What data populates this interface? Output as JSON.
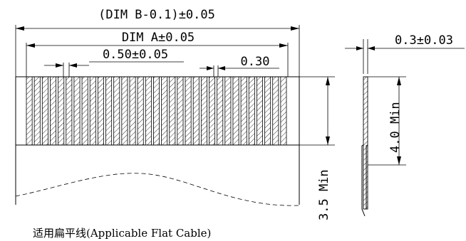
{
  "dims": {
    "dim_b": "(DIM B-0.1)±0.05",
    "dim_a": "DIM A±0.05",
    "pitch": "0.50±0.05",
    "width": "0.30",
    "thickness": "0.3±0.03",
    "length_a": "4.0 Min",
    "length_b": "3.5 Min"
  },
  "caption": "适用扁平线(Applicable Flat Cable)"
}
